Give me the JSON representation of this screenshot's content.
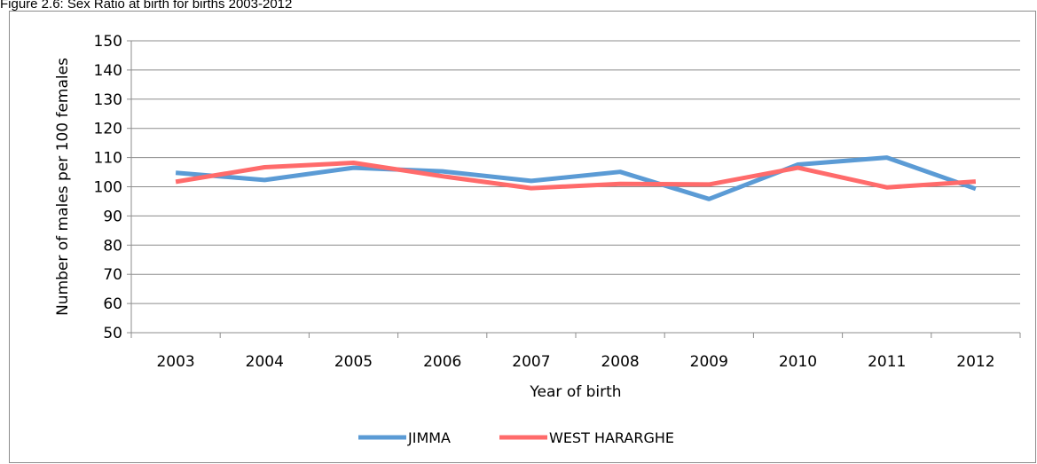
{
  "figure": {
    "caption": "Figure 2.6: Sex Ratio at birth for births 2003-2012"
  },
  "chart_data": {
    "type": "line",
    "title": "",
    "xlabel": "Year of birth",
    "ylabel": "Number of males per 100 females",
    "categories": [
      "2003",
      "2004",
      "2005",
      "2006",
      "2007",
      "2008",
      "2009",
      "2010",
      "2011",
      "2012"
    ],
    "ylim": [
      50,
      150
    ],
    "yticks": [
      50,
      60,
      70,
      80,
      90,
      100,
      110,
      120,
      130,
      140,
      150
    ],
    "grid": true,
    "legend_position": "bottom",
    "series": [
      {
        "name": "JIMMA",
        "color": "#5b9bd5",
        "values": [
          104.8,
          102.3,
          106.5,
          105.3,
          102.0,
          105.1,
          95.8,
          107.6,
          110.0,
          99.3
        ]
      },
      {
        "name": "WEST HARARGHE",
        "color": "#ff6b6b",
        "values": [
          101.7,
          106.7,
          108.2,
          103.6,
          99.5,
          101.0,
          100.8,
          106.5,
          99.8,
          101.8
        ]
      }
    ]
  }
}
